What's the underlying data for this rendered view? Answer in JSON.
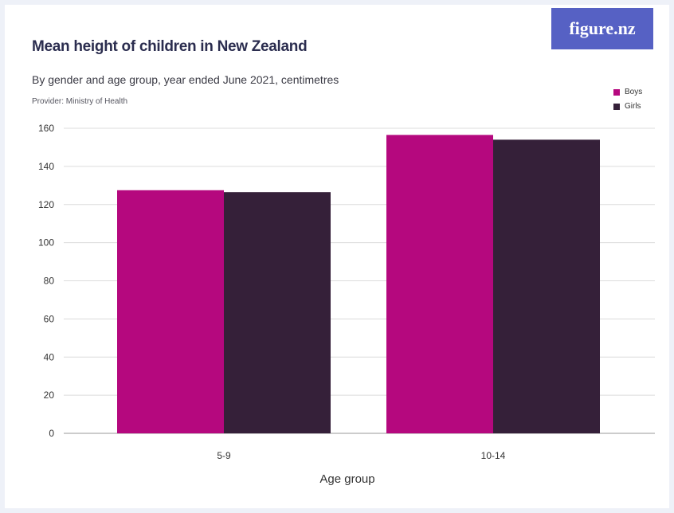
{
  "header": {
    "title": "Mean height of children in New Zealand",
    "subtitle": "By gender and age group, year ended June 2021, centimetres",
    "provider": "Provider: Ministry of Health",
    "logo_text": "figure.nz"
  },
  "colors": {
    "boys": "#b5087e",
    "girls": "#352039",
    "grid": "#dcdcdc",
    "logo_bg": "#5661c4"
  },
  "chart_data": {
    "type": "bar",
    "categories": [
      "5-9",
      "10-14"
    ],
    "series": [
      {
        "name": "Boys",
        "values": [
          127.5,
          156.5
        ]
      },
      {
        "name": "Girls",
        "values": [
          126.5,
          154
        ]
      }
    ],
    "title": "Mean height of children in New Zealand",
    "subtitle": "By gender and age group, year ended June 2021, centimetres",
    "xlabel": "Age group",
    "ylabel": "",
    "ylim": [
      0,
      160
    ],
    "yticks": [
      0,
      20,
      40,
      60,
      80,
      100,
      120,
      140,
      160
    ],
    "grid": true,
    "legend": "top-right"
  }
}
